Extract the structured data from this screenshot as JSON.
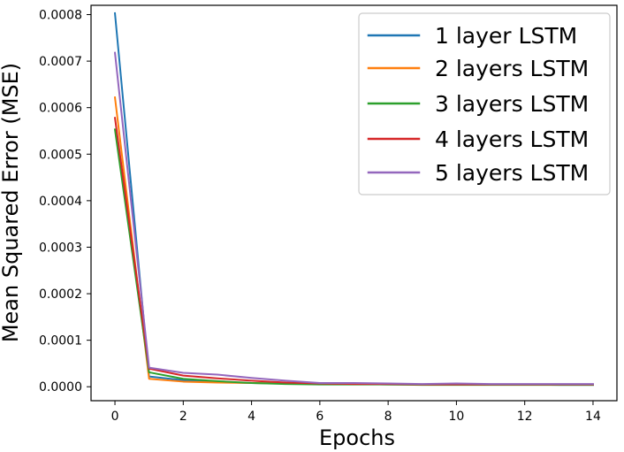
{
  "chart_data": {
    "type": "line",
    "title": "",
    "xlabel": "Epochs",
    "ylabel": "Mean Squared Error (MSE)",
    "xlim": [
      -0.7,
      14.7
    ],
    "ylim": [
      -3e-05,
      0.00082
    ],
    "x_ticks": [
      0,
      2,
      4,
      6,
      8,
      10,
      12,
      14
    ],
    "y_ticks": [
      0.0,
      0.0001,
      0.0002,
      0.0003,
      0.0004,
      0.0005,
      0.0006,
      0.0007,
      0.0008
    ],
    "x_tick_labels": [
      "0",
      "2",
      "4",
      "6",
      "8",
      "10",
      "12",
      "14"
    ],
    "y_tick_labels": [
      "0.0000",
      "0.0001",
      "0.0002",
      "0.0003",
      "0.0004",
      "0.0005",
      "0.0006",
      "0.0007",
      "0.0008"
    ],
    "grid": false,
    "legend_position": "top-right",
    "x": [
      0,
      1,
      2,
      3,
      4,
      5,
      6,
      7,
      8,
      9,
      10,
      11,
      12,
      13,
      14
    ],
    "series": [
      {
        "name": "1 layer LSTM",
        "color": "#1f77b4",
        "values": [
          0.000803,
          2.2e-05,
          1.4e-05,
          1e-05,
          8e-06,
          7e-06,
          6e-06,
          6e-06,
          5e-06,
          5e-06,
          5e-06,
          5e-06,
          5e-06,
          4e-06,
          4e-06
        ]
      },
      {
        "name": "2 layers LSTM",
        "color": "#ff7f0e",
        "values": [
          0.000622,
          1.7e-05,
          1.1e-05,
          9e-06,
          8e-06,
          7e-06,
          6e-06,
          6e-06,
          5e-06,
          5e-06,
          5e-06,
          5e-06,
          5e-06,
          5e-06,
          5e-06
        ]
      },
      {
        "name": "3 layers LSTM",
        "color": "#2ca02c",
        "values": [
          0.000553,
          3.1e-05,
          1.7e-05,
          1.2e-05,
          8e-06,
          6e-06,
          5e-06,
          5e-06,
          5e-06,
          4e-06,
          4e-06,
          4e-06,
          4e-06,
          4e-06,
          4e-06
        ]
      },
      {
        "name": "4 layers LSTM",
        "color": "#d62728",
        "values": [
          0.000578,
          3.9e-05,
          2.4e-05,
          1.8e-05,
          1.3e-05,
          9e-06,
          7e-06,
          6e-06,
          6e-06,
          5e-06,
          5e-06,
          5e-06,
          5e-06,
          5e-06,
          5e-06
        ]
      },
      {
        "name": "5 layers LSTM",
        "color": "#9467bd",
        "values": [
          0.000718,
          4.1e-05,
          3e-05,
          2.6e-05,
          1.9e-05,
          1.3e-05,
          8e-06,
          8e-06,
          7e-06,
          6e-06,
          7e-06,
          6e-06,
          6e-06,
          6e-06,
          6e-06
        ]
      }
    ]
  }
}
